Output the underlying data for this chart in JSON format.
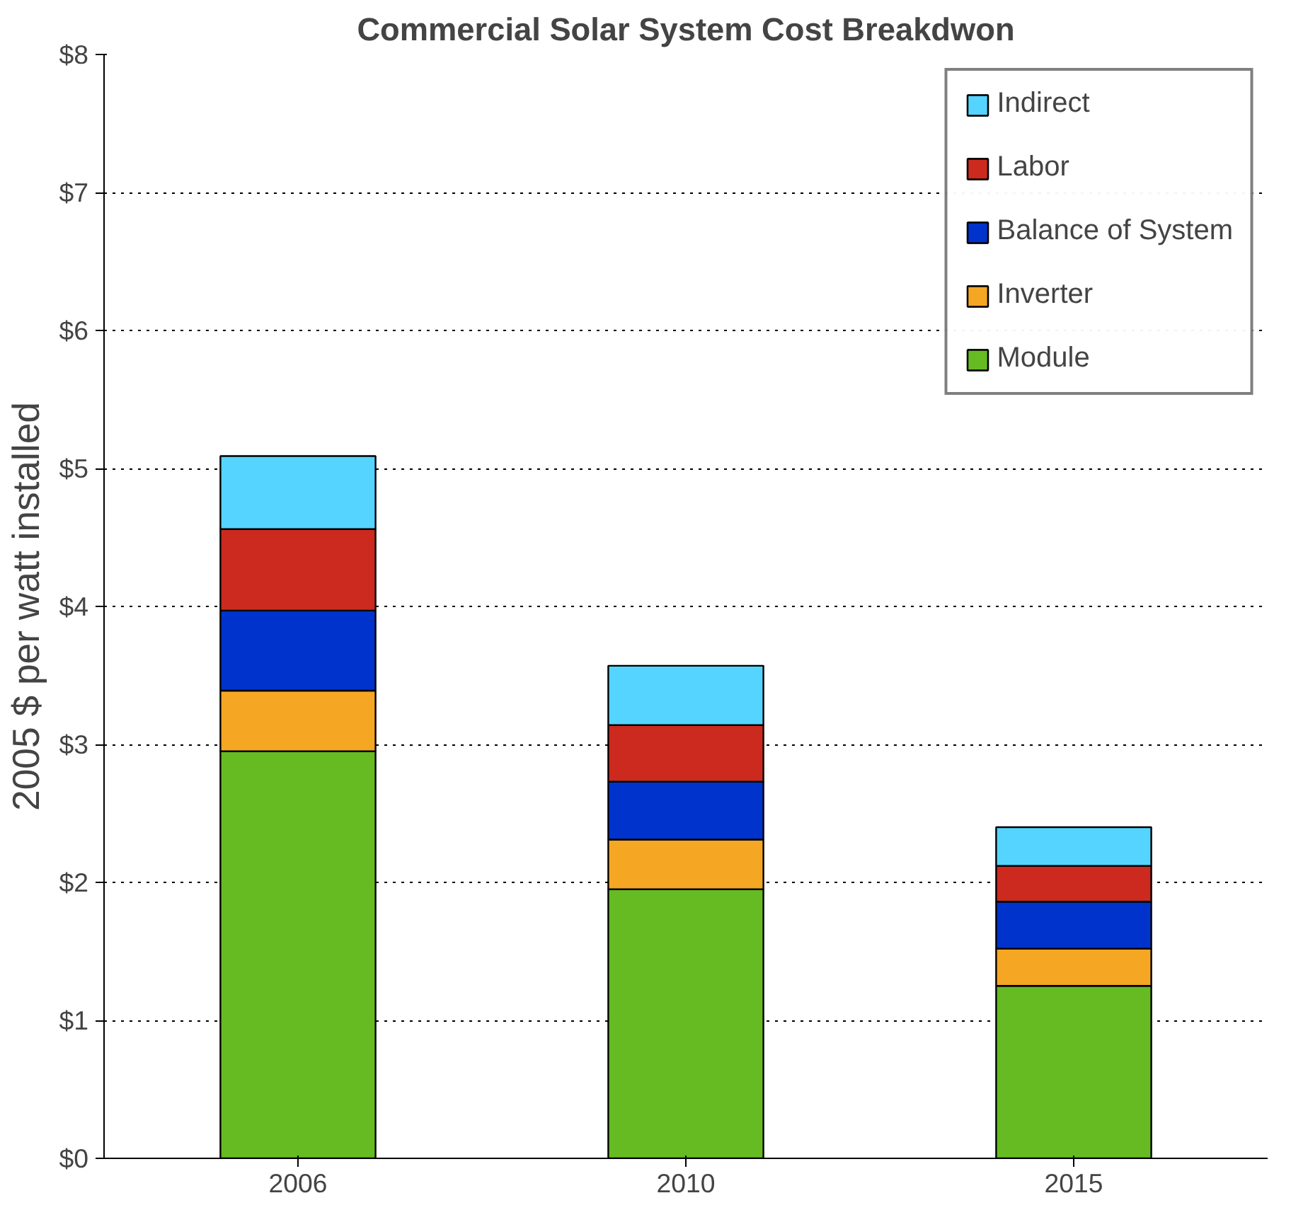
{
  "chart_data": {
    "type": "bar",
    "stacked": true,
    "title": "Commercial Solar System Cost Breakdwon",
    "ylabel": "2005 $ per watt installed",
    "categories": [
      "2006",
      "2010",
      "2015"
    ],
    "series": [
      {
        "name": "Module",
        "color": "#66bb22",
        "values": [
          2.95,
          1.95,
          1.25
        ]
      },
      {
        "name": "Inverter",
        "color": "#f5a623",
        "values": [
          0.44,
          0.36,
          0.27
        ]
      },
      {
        "name": "Balance of System",
        "color": "#0033cc",
        "values": [
          0.58,
          0.42,
          0.34
        ]
      },
      {
        "name": "Labor",
        "color": "#cc2a1e",
        "values": [
          0.59,
          0.41,
          0.26
        ]
      },
      {
        "name": "Indirect",
        "color": "#55d4ff",
        "values": [
          0.53,
          0.43,
          0.28
        ]
      }
    ],
    "ylim": [
      0,
      8
    ],
    "yticks": [
      {
        "value": 0,
        "label": "$0"
      },
      {
        "value": 1,
        "label": "$1"
      },
      {
        "value": 2,
        "label": "$2"
      },
      {
        "value": 3,
        "label": "$3"
      },
      {
        "value": 4,
        "label": "$4"
      },
      {
        "value": 5,
        "label": "$5"
      },
      {
        "value": 6,
        "label": "$6"
      },
      {
        "value": 7,
        "label": "$7"
      },
      {
        "value": 8,
        "label": "$8"
      }
    ],
    "grid": "y",
    "legend": "top right"
  }
}
